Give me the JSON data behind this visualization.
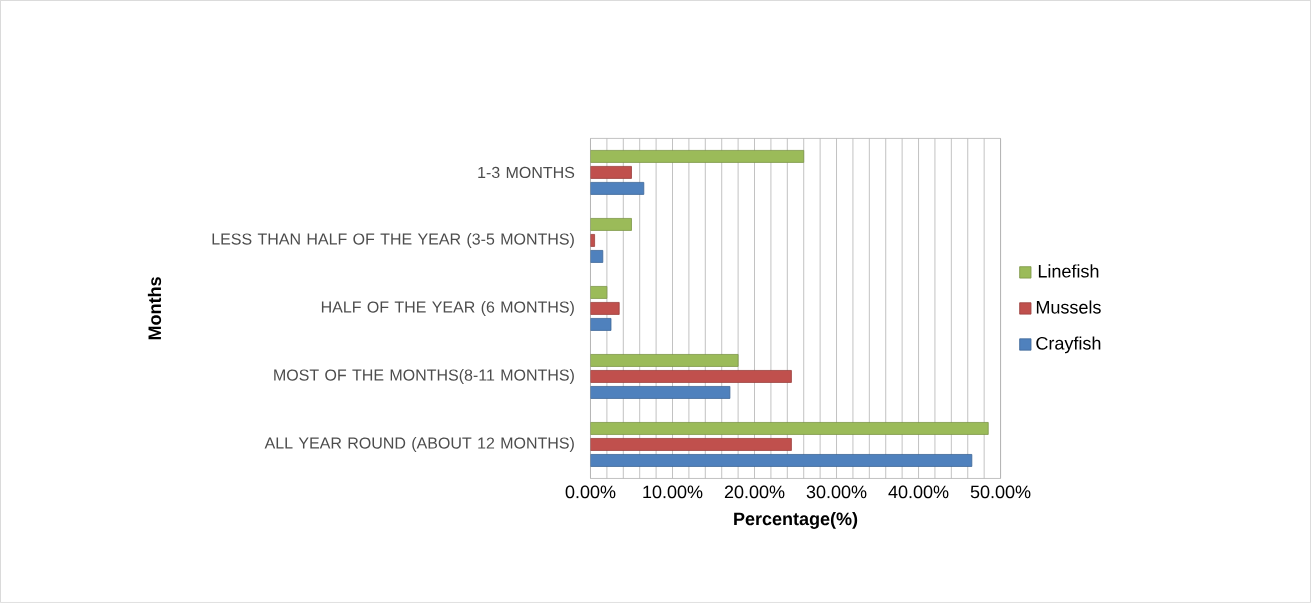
{
  "chart_data": {
    "type": "bar",
    "orientation": "horizontal",
    "xlabel": "Percentage(%)",
    "ylabel": "Months",
    "categories": [
      "1-3 MONTHS",
      "LESS THAN HALF OF THE YEAR (3-5 MONTHS)",
      "HALF OF THE YEAR (6 MONTHS)",
      "MOST OF THE MONTHS(8-11 MONTHS)",
      "ALL YEAR ROUND (ABOUT 12 MONTHS)"
    ],
    "series": [
      {
        "name": "Crayfish",
        "color": "#4f81bd",
        "values": [
          6.5,
          1.5,
          2.5,
          17,
          46.5
        ]
      },
      {
        "name": "Mussels",
        "color": "#c0504d",
        "values": [
          5,
          0.5,
          3.5,
          24.5,
          24.5
        ]
      },
      {
        "name": "Linefish",
        "color": "#9bbb59",
        "values": [
          26,
          5,
          2,
          18,
          48.5
        ]
      }
    ],
    "xlim": [
      0,
      50
    ],
    "xticks": [
      {
        "value": 0,
        "label": "0.00%"
      },
      {
        "value": 10,
        "label": "10.00%"
      },
      {
        "value": 20,
        "label": "20.00%"
      },
      {
        "value": 30,
        "label": "30.00%"
      },
      {
        "value": 40,
        "label": "40.00%"
      },
      {
        "value": 50,
        "label": "50.00%"
      }
    ],
    "grid": "x",
    "legend": "right"
  }
}
